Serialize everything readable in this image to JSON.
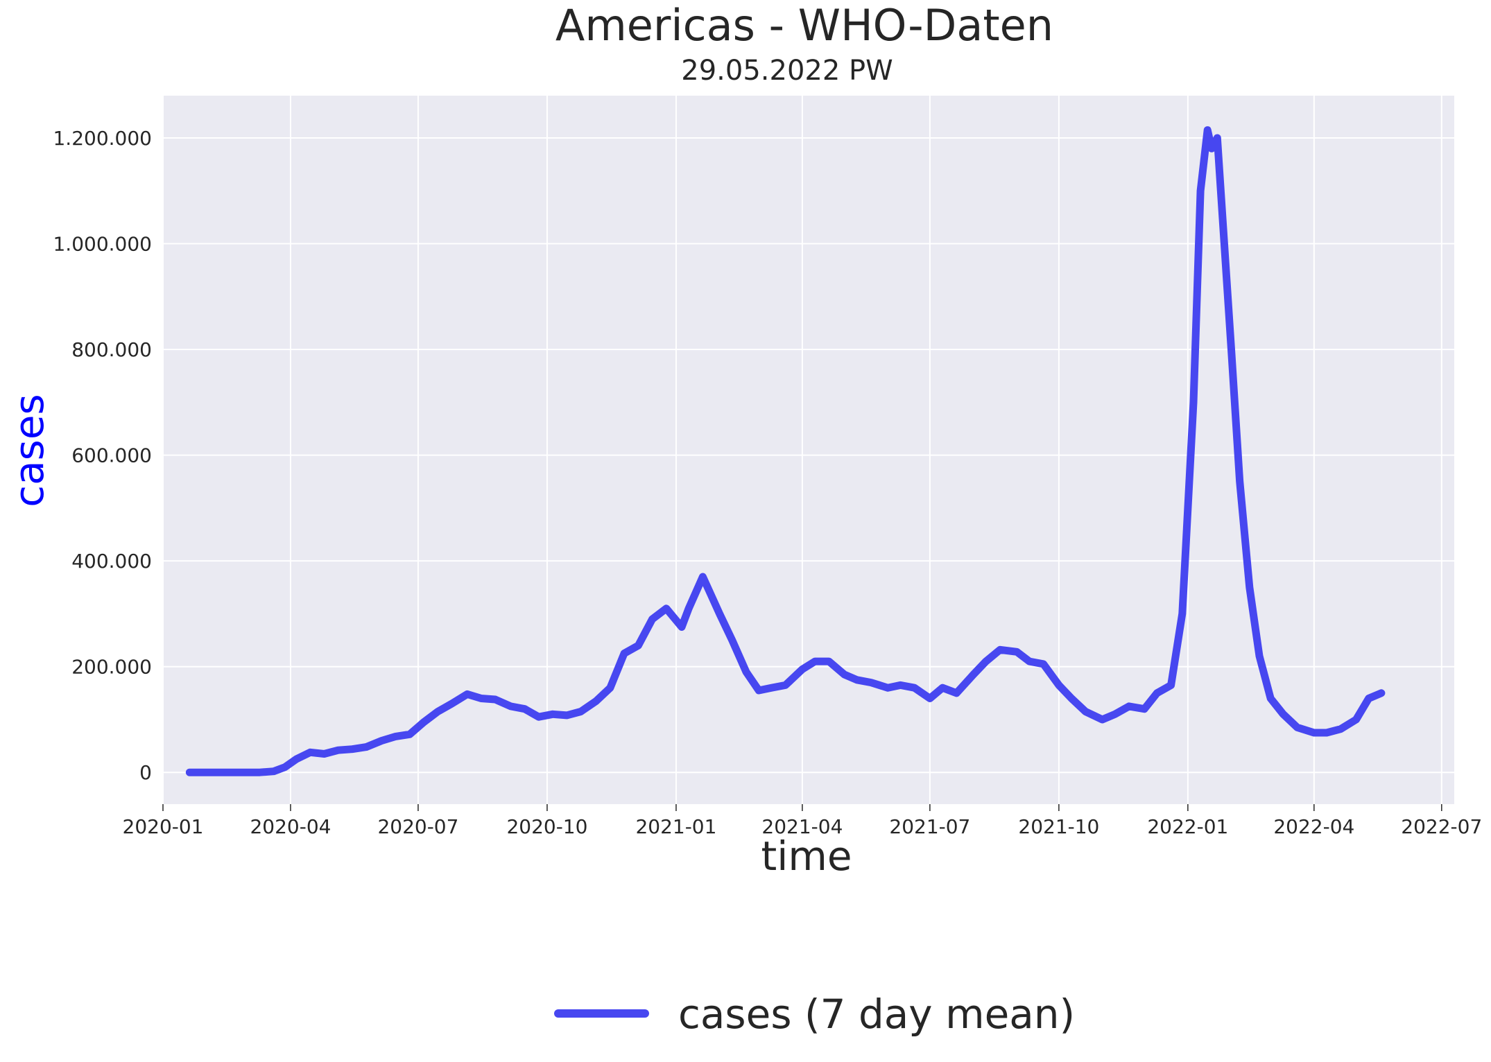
{
  "colors": {
    "plot_bg": "#eaeaf2",
    "grid": "#ffffff",
    "line": "#4747f0",
    "ylabel": "#0000ff",
    "text": "#262626"
  },
  "chart_data": {
    "type": "line",
    "title": "Americas - WHO-Daten",
    "subtitle": "29.05.2022 PW",
    "xlabel": "time",
    "ylabel": "cases",
    "grid": true,
    "legend_position": "bottom-center",
    "xlim": [
      "2020-01-01",
      "2022-07-10"
    ],
    "ylim": [
      -60000,
      1280000
    ],
    "x_ticks": [
      {
        "date": "2020-01-01",
        "label": "2020-01"
      },
      {
        "date": "2020-04-01",
        "label": "2020-04"
      },
      {
        "date": "2020-07-01",
        "label": "2020-07"
      },
      {
        "date": "2020-10-01",
        "label": "2020-10"
      },
      {
        "date": "2021-01-01",
        "label": "2021-01"
      },
      {
        "date": "2021-04-01",
        "label": "2021-04"
      },
      {
        "date": "2021-07-01",
        "label": "2021-07"
      },
      {
        "date": "2021-10-01",
        "label": "2021-10"
      },
      {
        "date": "2022-01-01",
        "label": "2022-01"
      },
      {
        "date": "2022-04-01",
        "label": "2022-04"
      },
      {
        "date": "2022-07-01",
        "label": "2022-07"
      }
    ],
    "y_ticks": [
      {
        "value": 0,
        "label": "0"
      },
      {
        "value": 200000,
        "label": "200.000"
      },
      {
        "value": 400000,
        "label": "400.000"
      },
      {
        "value": 600000,
        "label": "600.000"
      },
      {
        "value": 800000,
        "label": "800.000"
      },
      {
        "value": 1000000,
        "label": "1.000.000"
      },
      {
        "value": 1200000,
        "label": "1.200.000"
      }
    ],
    "series": [
      {
        "name": "cases (7 day mean)",
        "x": [
          "2020-01-20",
          "2020-02-15",
          "2020-03-10",
          "2020-03-20",
          "2020-03-28",
          "2020-04-05",
          "2020-04-15",
          "2020-04-25",
          "2020-05-05",
          "2020-05-15",
          "2020-05-25",
          "2020-06-05",
          "2020-06-15",
          "2020-06-25",
          "2020-07-05",
          "2020-07-15",
          "2020-07-25",
          "2020-08-05",
          "2020-08-15",
          "2020-08-25",
          "2020-09-05",
          "2020-09-15",
          "2020-09-25",
          "2020-10-05",
          "2020-10-15",
          "2020-10-25",
          "2020-11-05",
          "2020-11-15",
          "2020-11-25",
          "2020-12-05",
          "2020-12-15",
          "2020-12-25",
          "2021-01-05",
          "2021-01-10",
          "2021-01-20",
          "2021-02-01",
          "2021-02-10",
          "2021-02-20",
          "2021-03-01",
          "2021-03-10",
          "2021-03-20",
          "2021-04-01",
          "2021-04-10",
          "2021-04-20",
          "2021-05-01",
          "2021-05-10",
          "2021-05-20",
          "2021-06-01",
          "2021-06-10",
          "2021-06-20",
          "2021-07-01",
          "2021-07-10",
          "2021-07-20",
          "2021-08-01",
          "2021-08-10",
          "2021-08-20",
          "2021-09-01",
          "2021-09-10",
          "2021-09-20",
          "2021-10-01",
          "2021-10-10",
          "2021-10-20",
          "2021-11-01",
          "2021-11-10",
          "2021-11-20",
          "2021-12-01",
          "2021-12-10",
          "2021-12-20",
          "2021-12-28",
          "2022-01-05",
          "2022-01-10",
          "2022-01-15",
          "2022-01-18",
          "2022-01-22",
          "2022-01-27",
          "2022-02-01",
          "2022-02-07",
          "2022-02-14",
          "2022-02-21",
          "2022-03-01",
          "2022-03-10",
          "2022-03-20",
          "2022-04-01",
          "2022-04-10",
          "2022-04-20",
          "2022-05-01",
          "2022-05-10",
          "2022-05-19"
        ],
        "y": [
          0,
          0,
          0,
          2000,
          10000,
          25000,
          38000,
          35000,
          42000,
          44000,
          48000,
          60000,
          68000,
          72000,
          95000,
          115000,
          130000,
          148000,
          140000,
          138000,
          125000,
          120000,
          105000,
          110000,
          108000,
          115000,
          135000,
          160000,
          225000,
          240000,
          290000,
          310000,
          275000,
          310000,
          370000,
          300000,
          250000,
          190000,
          155000,
          160000,
          165000,
          195000,
          210000,
          210000,
          185000,
          175000,
          170000,
          160000,
          165000,
          160000,
          140000,
          160000,
          150000,
          185000,
          210000,
          232000,
          228000,
          210000,
          205000,
          165000,
          140000,
          115000,
          100000,
          110000,
          125000,
          120000,
          150000,
          165000,
          300000,
          700000,
          1100000,
          1215000,
          1180000,
          1200000,
          1000000,
          800000,
          550000,
          350000,
          220000,
          140000,
          110000,
          85000,
          75000,
          75000,
          82000,
          100000,
          140000,
          150000
        ]
      }
    ]
  }
}
